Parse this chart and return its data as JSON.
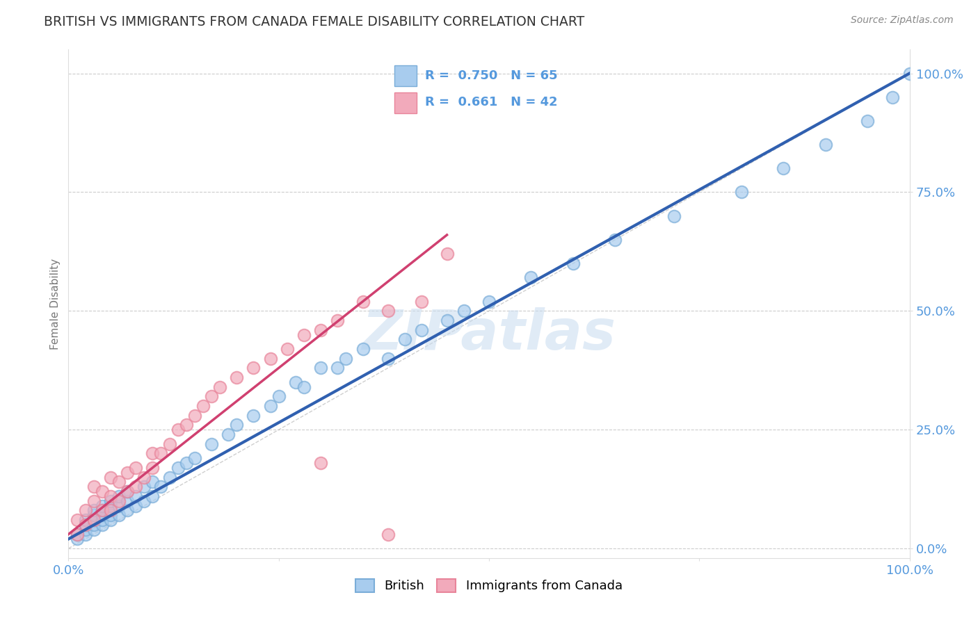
{
  "title": "BRITISH VS IMMIGRANTS FROM CANADA FEMALE DISABILITY CORRELATION CHART",
  "source": "Source: ZipAtlas.com",
  "ylabel": "Female Disability",
  "xlim": [
    0.0,
    1.0
  ],
  "ylim": [
    -0.02,
    1.05
  ],
  "ytick_labels": [
    "0.0%",
    "25.0%",
    "50.0%",
    "75.0%",
    "100.0%"
  ],
  "ytick_positions": [
    0.0,
    0.25,
    0.5,
    0.75,
    1.0
  ],
  "xtick_positions": [
    0.0,
    0.25,
    0.5,
    0.75,
    1.0
  ],
  "xtick_labels": [
    "0.0%",
    "",
    "",
    "",
    "100.0%"
  ],
  "british_R": 0.75,
  "british_N": 65,
  "canada_R": 0.661,
  "canada_N": 42,
  "british_color": "#A8CCEE",
  "canada_color": "#F2AABB",
  "british_edge_color": "#7AADD8",
  "canada_edge_color": "#E8849A",
  "british_line_color": "#3060B0",
  "canada_line_color": "#D04070",
  "diagonal_color": "#BBBBBB",
  "grid_color": "#CCCCCC",
  "title_color": "#333333",
  "source_color": "#888888",
  "axis_tick_color": "#5599DD",
  "ylabel_color": "#777777",
  "watermark_color": "#C8DCF0",
  "watermark": "ZIPatlas",
  "british_x": [
    0.01,
    0.01,
    0.02,
    0.02,
    0.02,
    0.02,
    0.03,
    0.03,
    0.03,
    0.03,
    0.03,
    0.04,
    0.04,
    0.04,
    0.04,
    0.04,
    0.05,
    0.05,
    0.05,
    0.05,
    0.06,
    0.06,
    0.06,
    0.07,
    0.07,
    0.07,
    0.08,
    0.08,
    0.09,
    0.09,
    0.1,
    0.1,
    0.11,
    0.12,
    0.13,
    0.14,
    0.15,
    0.17,
    0.19,
    0.2,
    0.22,
    0.24,
    0.25,
    0.27,
    0.28,
    0.3,
    0.32,
    0.33,
    0.35,
    0.38,
    0.4,
    0.42,
    0.45,
    0.47,
    0.5,
    0.55,
    0.6,
    0.65,
    0.72,
    0.8,
    0.85,
    0.9,
    0.95,
    0.98,
    1.0
  ],
  "british_y": [
    0.02,
    0.03,
    0.03,
    0.04,
    0.05,
    0.06,
    0.04,
    0.05,
    0.06,
    0.07,
    0.08,
    0.05,
    0.06,
    0.07,
    0.08,
    0.09,
    0.06,
    0.07,
    0.09,
    0.1,
    0.07,
    0.09,
    0.11,
    0.08,
    0.1,
    0.12,
    0.09,
    0.11,
    0.1,
    0.13,
    0.11,
    0.14,
    0.13,
    0.15,
    0.17,
    0.18,
    0.19,
    0.22,
    0.24,
    0.26,
    0.28,
    0.3,
    0.32,
    0.35,
    0.34,
    0.38,
    0.38,
    0.4,
    0.42,
    0.4,
    0.44,
    0.46,
    0.48,
    0.5,
    0.52,
    0.57,
    0.6,
    0.65,
    0.7,
    0.75,
    0.8,
    0.85,
    0.9,
    0.95,
    1.0
  ],
  "canada_x": [
    0.01,
    0.01,
    0.02,
    0.02,
    0.03,
    0.03,
    0.03,
    0.04,
    0.04,
    0.05,
    0.05,
    0.05,
    0.06,
    0.06,
    0.07,
    0.07,
    0.08,
    0.08,
    0.09,
    0.1,
    0.1,
    0.11,
    0.12,
    0.13,
    0.14,
    0.15,
    0.16,
    0.17,
    0.18,
    0.2,
    0.22,
    0.24,
    0.26,
    0.28,
    0.3,
    0.32,
    0.35,
    0.38,
    0.42,
    0.45,
    0.3,
    0.38
  ],
  "canada_y": [
    0.03,
    0.06,
    0.05,
    0.08,
    0.06,
    0.1,
    0.13,
    0.08,
    0.12,
    0.08,
    0.11,
    0.15,
    0.1,
    0.14,
    0.12,
    0.16,
    0.13,
    0.17,
    0.15,
    0.17,
    0.2,
    0.2,
    0.22,
    0.25,
    0.26,
    0.28,
    0.3,
    0.32,
    0.34,
    0.36,
    0.38,
    0.4,
    0.42,
    0.45,
    0.46,
    0.48,
    0.52,
    0.5,
    0.52,
    0.62,
    0.18,
    0.03
  ],
  "british_line_x": [
    0.0,
    1.0
  ],
  "british_line_y": [
    0.02,
    1.0
  ],
  "canada_line_x": [
    0.0,
    0.45
  ],
  "canada_line_y": [
    0.03,
    0.66
  ]
}
